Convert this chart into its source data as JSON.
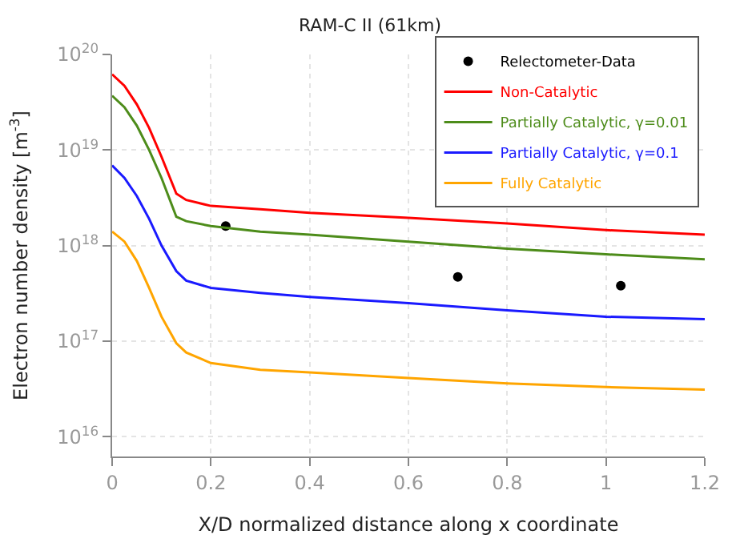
{
  "chart_data": {
    "type": "line",
    "title": "RAM-C II (61km)",
    "xlabel": "X/D normalized distance along x coordinate",
    "ylabel": "Electron number density [m$^{-3}$]",
    "log": "y",
    "grid": true,
    "legend": "top right",
    "marker": "none",
    "line_style": "solid",
    "xlim": [
      0,
      1.2
    ],
    "xticks": [
      0,
      0.2,
      0.4,
      0.6,
      0.8,
      1,
      1.2
    ],
    "ylim": [
      6200000000000000.0,
      1e+20
    ],
    "yticks": [
      {
        "value": 1e+16,
        "label": "10$^{16}$"
      },
      {
        "value": 1e+17,
        "label": "10$^{17}$"
      },
      {
        "value": 1e+18,
        "label": "10$^{18}$"
      },
      {
        "value": 1e+19,
        "label": "10$^{19}$"
      },
      {
        "value": 1e+20,
        "label": "10$^{20}$"
      }
    ],
    "x": [
      0,
      0.025,
      0.05,
      0.075,
      0.1,
      0.13,
      0.15,
      0.2,
      0.3,
      0.4,
      0.6,
      0.8,
      1.0,
      1.2
    ],
    "series": [
      {
        "name": "Relectometer-Data",
        "type": "scatter",
        "marker": "circle",
        "color": "#000000",
        "x": [
          0.23,
          0.7,
          1.03
        ],
        "values": [
          1.6e+18,
          4.7e+17,
          3.8e+17
        ]
      },
      {
        "name": "Non-Catalytic",
        "color": "#ff0000",
        "values": [
          6.2e+19,
          4.7e+19,
          3e+19,
          1.7e+19,
          8.5e+18,
          3.5e+18,
          3e+18,
          2.6e+18,
          2.4e+18,
          2.2e+18,
          1.95e+18,
          1.7e+18,
          1.45e+18,
          1.3e+18
        ]
      },
      {
        "name": "Partially Catalytic, γ=0.01",
        "color": "#4d8c1a",
        "values": [
          3.7e+19,
          2.8e+19,
          1.8e+19,
          1e+19,
          5.1e+18,
          2e+18,
          1.8e+18,
          1.6e+18,
          1.4e+18,
          1.3e+18,
          1.1e+18,
          9.3e+17,
          8.1e+17,
          7.2e+17
        ]
      },
      {
        "name": "Partially Catalytic, γ=0.1",
        "color": "#1a1aff",
        "values": [
          6.9e+18,
          5.1e+18,
          3.3e+18,
          1.9e+18,
          1e+18,
          5.4e+17,
          4.3e+17,
          3.6e+17,
          3.2e+17,
          2.9e+17,
          2.5e+17,
          2.1e+17,
          1.8e+17,
          1.7e+17
        ]
      },
      {
        "name": "Fully Catalytic",
        "color": "#ffa500",
        "values": [
          1.4e+18,
          1.1e+18,
          6.9e+17,
          3.6e+17,
          1.8e+17,
          9.5e+16,
          7.6e+16,
          5.9e+16,
          5e+16,
          4.7e+16,
          4.1e+16,
          3.6e+16,
          3.3e+16,
          3.1e+16
        ]
      }
    ]
  }
}
